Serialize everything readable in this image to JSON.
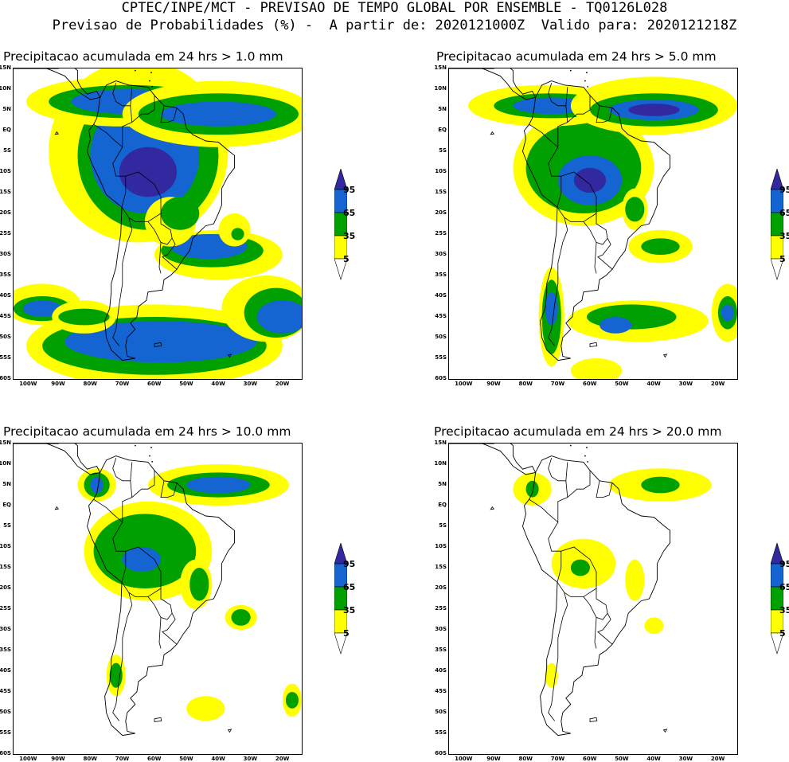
{
  "header": {
    "line1": "CPTEC/INPE/MCT - PREVISAO DE TEMPO GLOBAL POR ENSEMBLE - TQ0126L028",
    "line2": "Previsao de Probabilidades (%) -  A partir de: 2020121000Z  Valido para: 2020121218Z"
  },
  "panels": [
    {
      "title": "Precipitacao acumulada em 24 hrs > 1.0 mm",
      "threshold_mm": 1.0
    },
    {
      "title": "Precipitacao acumulada em 24 hrs > 5.0 mm",
      "threshold_mm": 5.0
    },
    {
      "title": "Precipitacao acumulada em 24 hrs > 10.0 mm",
      "threshold_mm": 10.0
    },
    {
      "title": "Precipitacao acumulada em 24 hrs > 20.0 mm",
      "threshold_mm": 20.0
    }
  ],
  "axes": {
    "lat_labels": [
      "15N",
      "10N",
      "5N",
      "EQ",
      "5S",
      "10S",
      "15S",
      "20S",
      "25S",
      "30S",
      "35S",
      "40S",
      "45S",
      "50S",
      "55S",
      "60S"
    ],
    "lon_labels": [
      "100W",
      "90W",
      "80W",
      "70W",
      "60W",
      "50W",
      "40W",
      "30W",
      "20W"
    ]
  },
  "legend": {
    "labels": [
      "95",
      "65",
      "35",
      "5"
    ],
    "colors": {
      "p5_35": "#ffff00",
      "p35_65": "#00a000",
      "p65_95": "#1464d2",
      "p95_100": "#3228a0",
      "background": "#ffffff",
      "coast": "#000000"
    }
  }
}
